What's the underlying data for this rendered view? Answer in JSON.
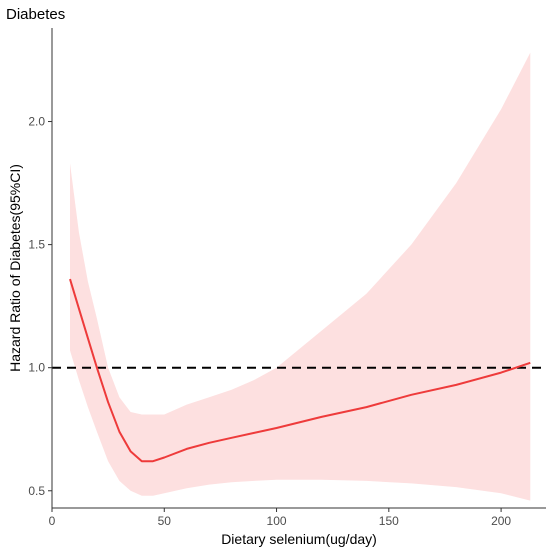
{
  "chart_data": {
    "type": "line",
    "title": "Diabetes",
    "xlabel": "Dietary selenium(ug/day)",
    "ylabel": "Hazard Ratio of Diabetes(95%CI)",
    "xlim": [
      0,
      220
    ],
    "ylim": [
      0.43,
      2.38
    ],
    "x_ticks": [
      0,
      50,
      100,
      150,
      200
    ],
    "y_ticks": [
      0.5,
      1.0,
      1.5,
      2.0
    ],
    "x_tick_labels": [
      "0",
      "50",
      "100",
      "150",
      "200"
    ],
    "y_tick_labels": [
      "0.5",
      "1.0",
      "1.5",
      "2.0"
    ],
    "grid": false,
    "reference_line": {
      "y": 1.0,
      "style": "dashed"
    },
    "line_color": "#ee3b3b",
    "band_color": "#fde0e0",
    "series": [
      {
        "x": [
          8,
          12,
          16,
          20,
          25,
          30,
          35,
          40,
          45,
          50,
          60,
          70,
          80,
          90,
          100,
          120,
          140,
          160,
          180,
          200,
          213
        ],
        "y": [
          1.36,
          1.24,
          1.12,
          1.0,
          0.86,
          0.74,
          0.66,
          0.62,
          0.62,
          0.635,
          0.67,
          0.695,
          0.715,
          0.735,
          0.755,
          0.8,
          0.84,
          0.89,
          0.93,
          0.98,
          1.02
        ],
        "lower": [
          1.07,
          0.95,
          0.84,
          0.74,
          0.62,
          0.54,
          0.5,
          0.48,
          0.48,
          0.49,
          0.51,
          0.525,
          0.535,
          0.54,
          0.545,
          0.545,
          0.54,
          0.53,
          0.515,
          0.49,
          0.46
        ],
        "upper": [
          1.83,
          1.55,
          1.35,
          1.2,
          1.0,
          0.88,
          0.82,
          0.81,
          0.81,
          0.81,
          0.85,
          0.88,
          0.91,
          0.95,
          1.0,
          1.15,
          1.3,
          1.5,
          1.75,
          2.05,
          2.28
        ]
      }
    ]
  }
}
